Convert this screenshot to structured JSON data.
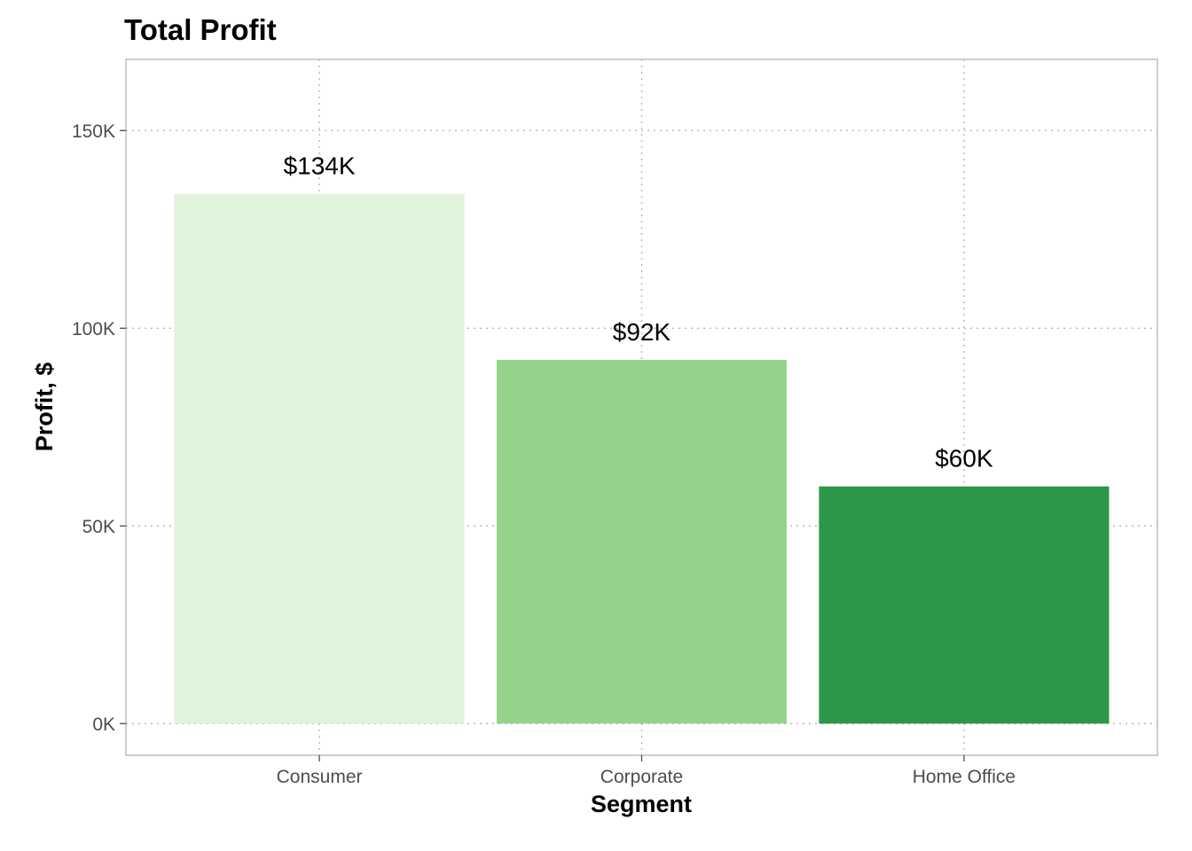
{
  "chart_data": {
    "type": "bar",
    "title": "Total Profit",
    "xlabel": "Segment",
    "ylabel": "Profit, $",
    "categories": [
      "Consumer",
      "Corporate",
      "Home Office"
    ],
    "values": [
      134000,
      92000,
      60000
    ],
    "data_labels": [
      "$134K",
      "$92K",
      "$60K"
    ],
    "bar_colors": [
      "#e0f3db",
      "#96d38a",
      "#2c9747"
    ],
    "ylim": [
      -8000,
      168000
    ],
    "yticks": [
      0,
      50000,
      100000,
      150000
    ],
    "ytick_labels": [
      "0K",
      "50K",
      "100K",
      "150K"
    ],
    "grid": true,
    "legend": "none"
  }
}
